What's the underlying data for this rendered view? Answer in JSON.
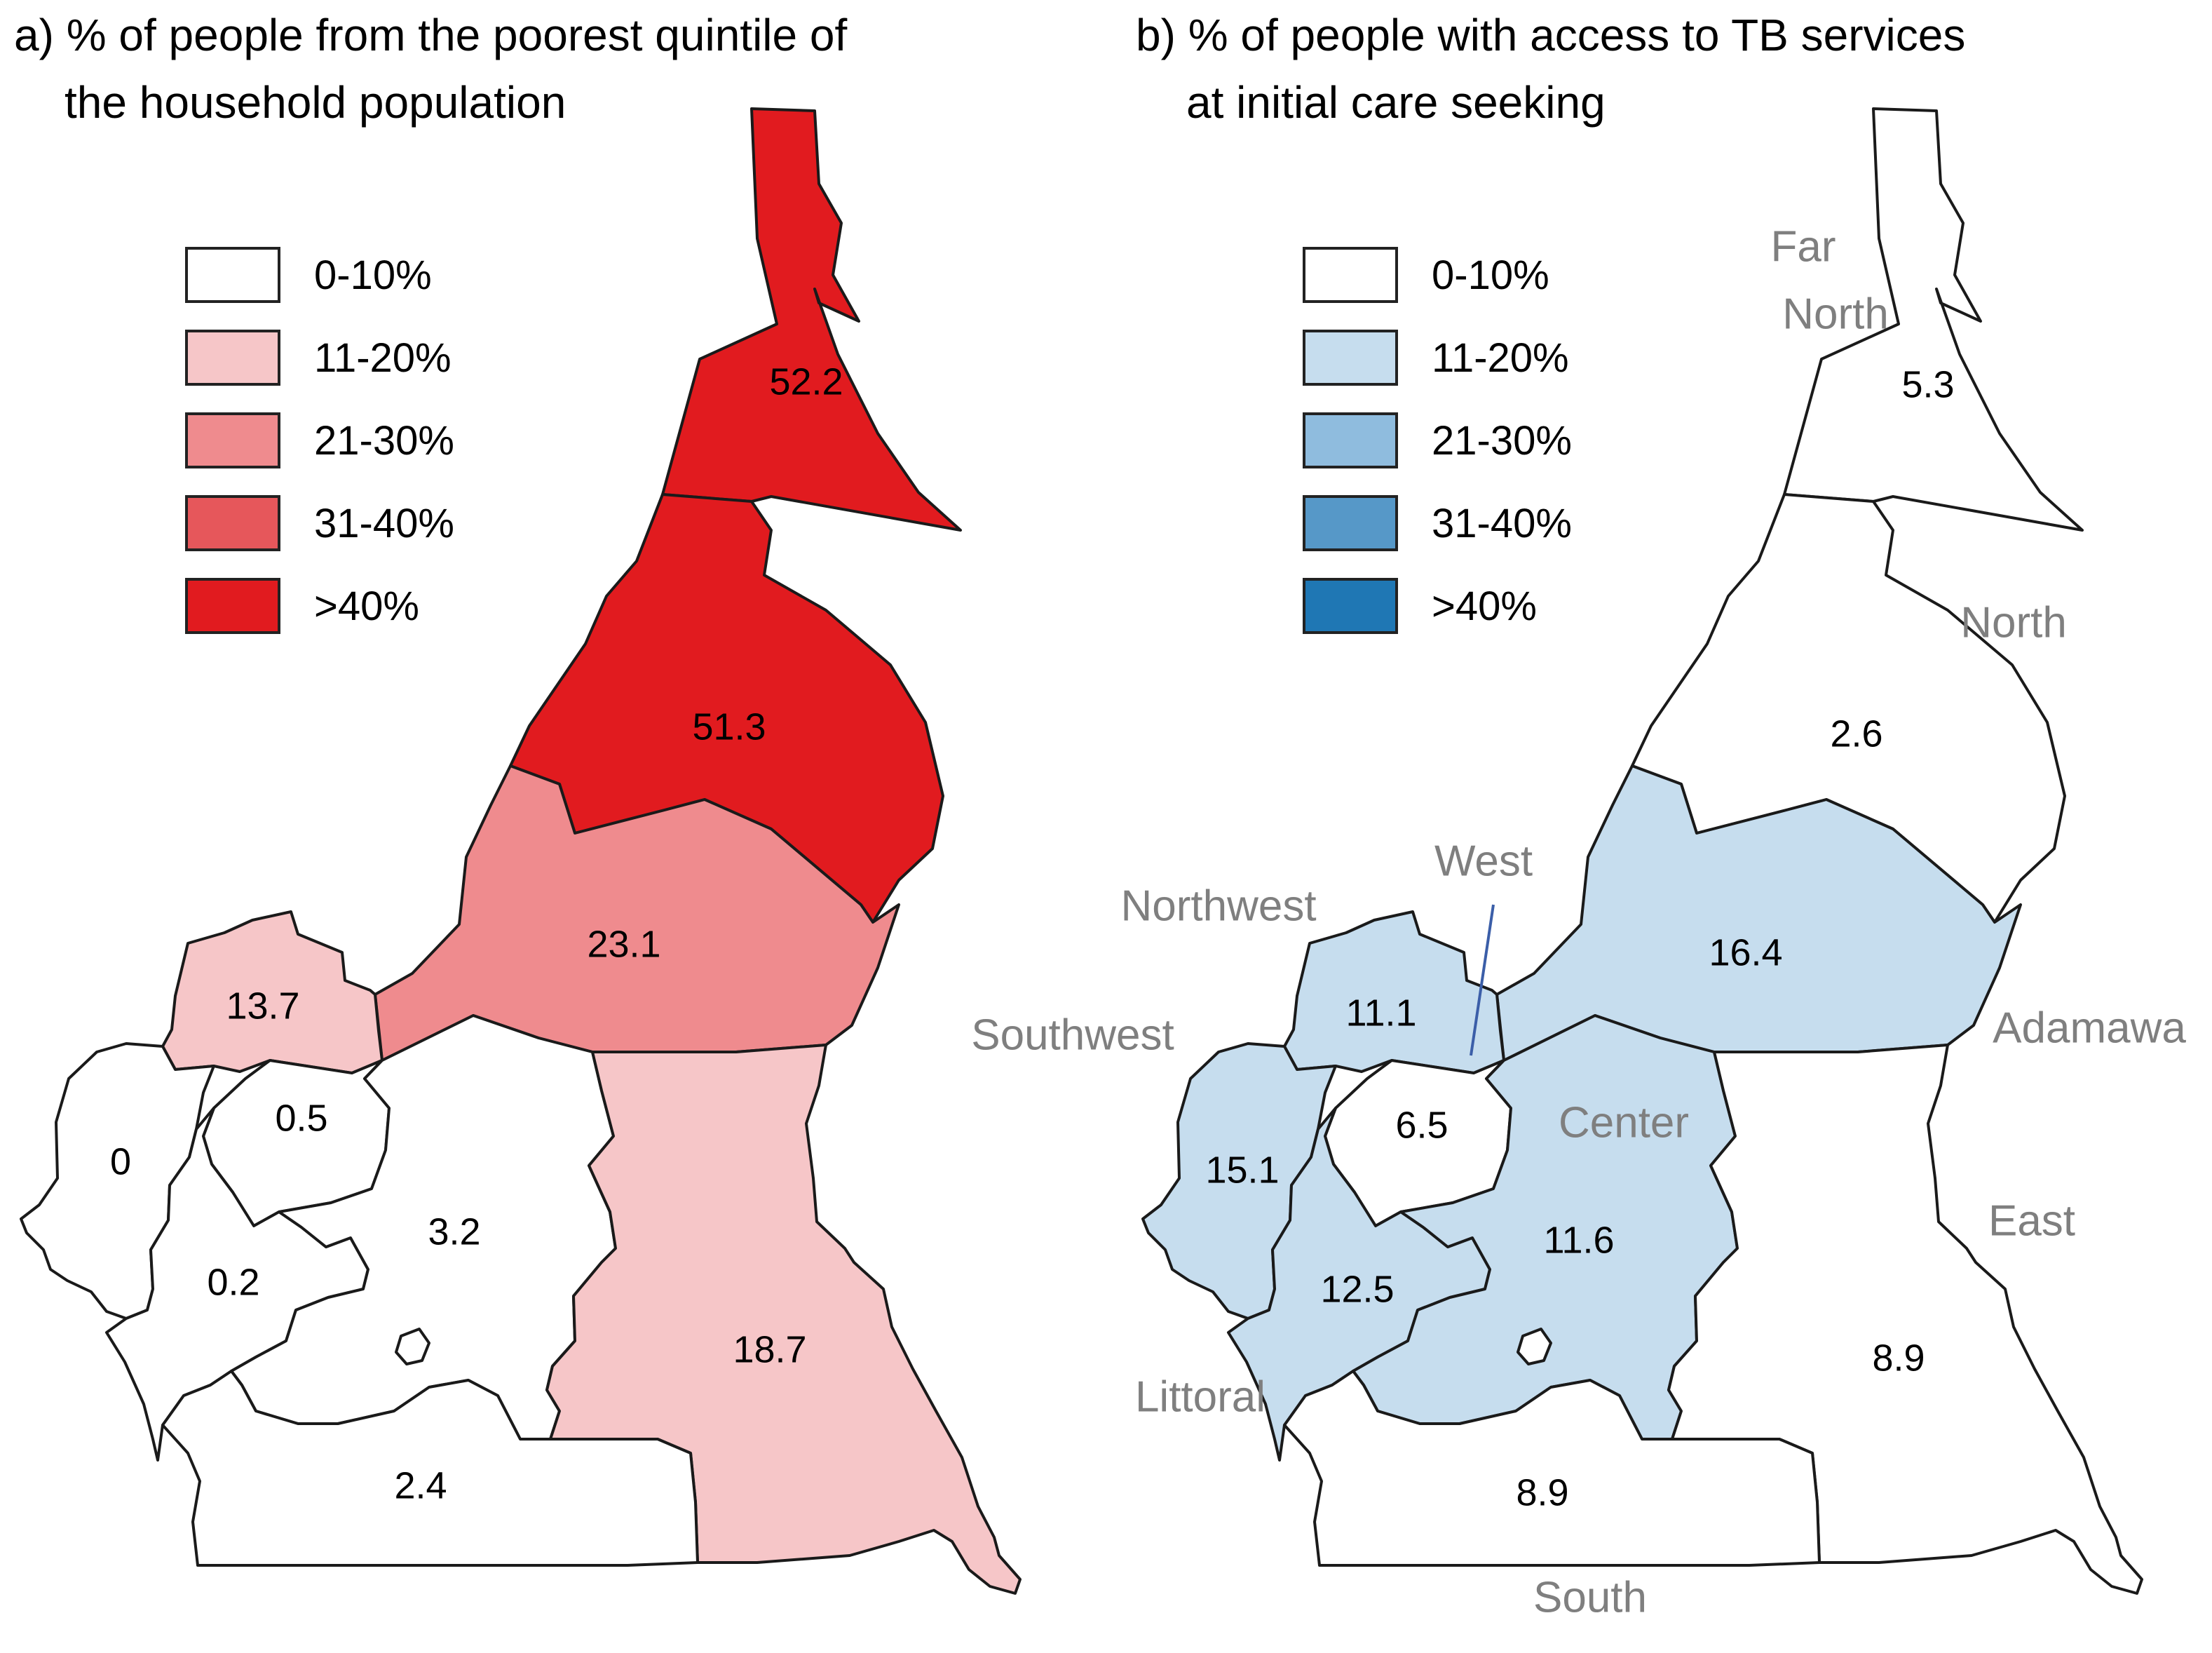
{
  "panel_a": {
    "title_line1": "a) % of people from the poorest quintile of",
    "title_line2": "the household population",
    "legend": [
      {
        "label": "0-10%",
        "color": "#ffffff"
      },
      {
        "label": "11-20%",
        "color": "#f6c6c8"
      },
      {
        "label": "21-30%",
        "color": "#ef8b8e"
      },
      {
        "label": "31-40%",
        "color": "#e6575b"
      },
      {
        "label": ">40%",
        "color": "#e11b1f"
      }
    ],
    "values": {
      "far_north": "52.2",
      "north": "51.3",
      "adamawa": "23.1",
      "northwest": "13.7",
      "west": "0.5",
      "southwest": "0",
      "littoral": "0.2",
      "center": "3.2",
      "east": "18.7",
      "south": "2.4"
    }
  },
  "panel_b": {
    "title_line1": "b) % of people with access to TB services",
    "title_line2": "at initial care seeking",
    "legend": [
      {
        "label": "0-10%",
        "color": "#ffffff"
      },
      {
        "label": "11-20%",
        "color": "#c6ddee"
      },
      {
        "label": "21-30%",
        "color": "#8fbcde"
      },
      {
        "label": "31-40%",
        "color": "#5698c8"
      },
      {
        "label": ">40%",
        "color": "#1f77b4"
      }
    ],
    "values": {
      "far_north": "5.3",
      "north": "2.6",
      "adamawa": "16.4",
      "northwest": "11.1",
      "west": "6.5",
      "southwest": "15.1",
      "littoral": "12.5",
      "center": "11.6",
      "east": "8.9",
      "south": "8.9"
    },
    "region_names": {
      "far_north_1": "Far",
      "far_north_2": "North",
      "north": "North",
      "west": "West",
      "northwest": "Northwest",
      "southwest": "Southwest",
      "adamawa": "Adamawa",
      "center": "Center",
      "east": "East",
      "littoral": "Littoral",
      "south": "South"
    }
  }
}
